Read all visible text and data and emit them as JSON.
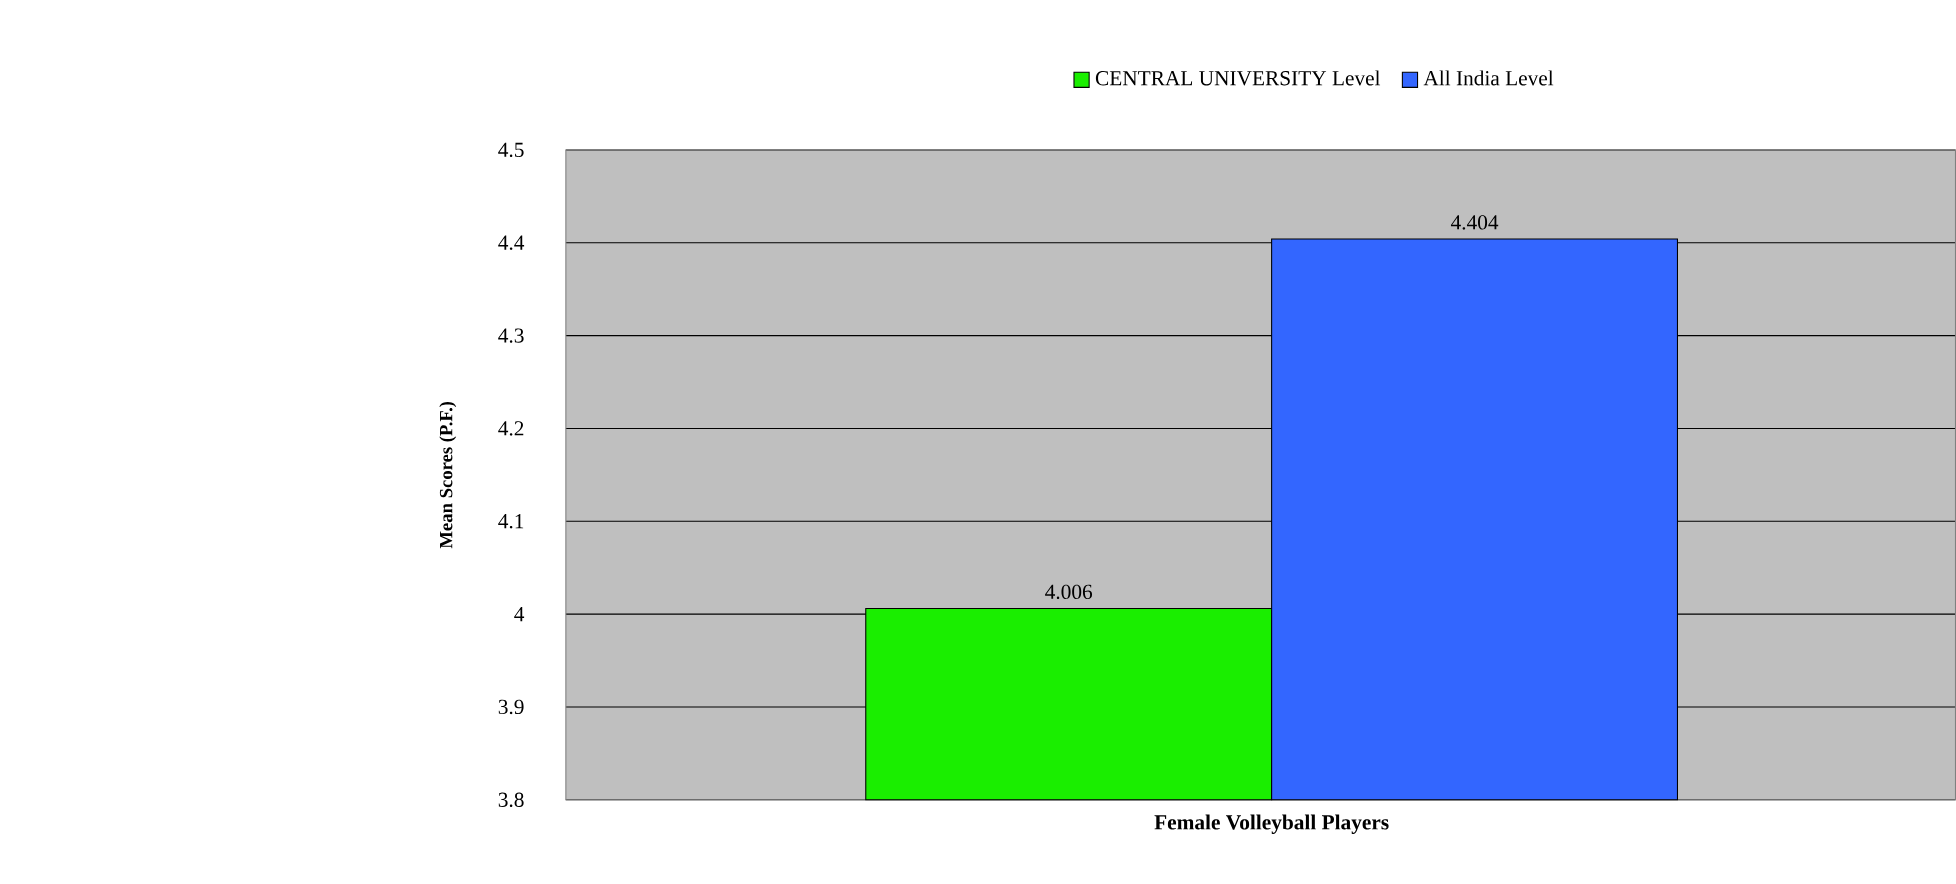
{
  "chart_data": {
    "type": "bar",
    "ylabel": "Mean Scores (P.F.)",
    "categories": [
      "Female Volleyball Players"
    ],
    "series": [
      {
        "name": "CENTRAL UNIVERSITY Level",
        "color": "#1aee00",
        "values": [
          4.006
        ]
      },
      {
        "name": "All India Level",
        "color": "#3366ff",
        "values": [
          4.404
        ]
      }
    ],
    "ylim": [
      3.8,
      4.5
    ],
    "yticks": [
      3.8,
      3.9,
      4,
      4.1,
      4.2,
      4.3,
      4.4,
      4.5
    ],
    "grid": "y",
    "legend": "top",
    "data_labels": true
  }
}
